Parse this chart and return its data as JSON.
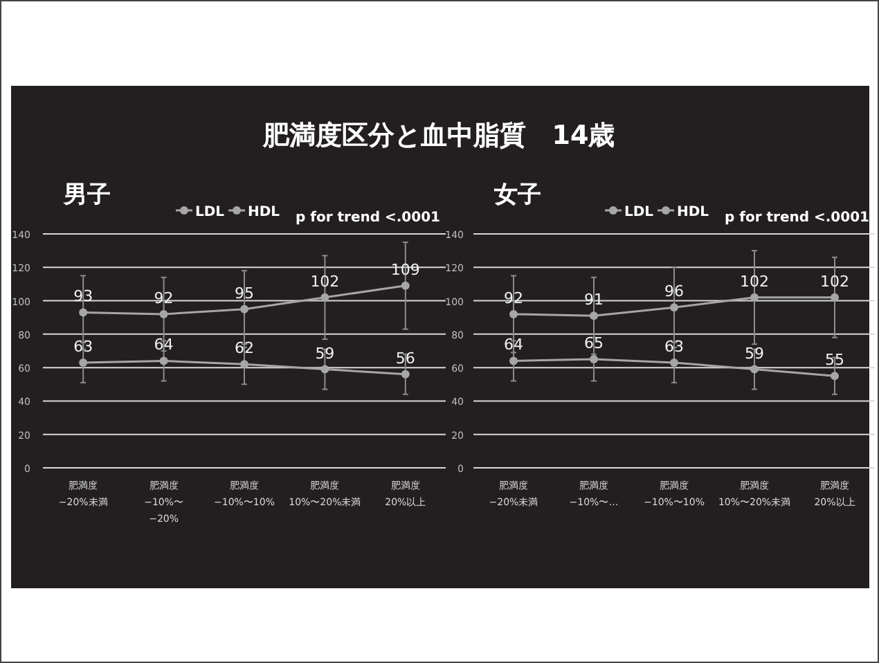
{
  "chart_data": [
    {
      "type": "line",
      "title": "肥満度区分と血中脂質　14歳",
      "subtitle": "男子",
      "categories": [
        "肥満度\n−20%未満",
        "肥満度\n−10%〜\n−20%",
        "肥満度\n−10%〜10%",
        "肥満度\n10%〜20%未満",
        "肥満度\n20%以上"
      ],
      "series": [
        {
          "name": "LDL",
          "color": "#a6a6a6",
          "values": [
            93,
            92,
            95,
            102,
            109
          ],
          "errors": [
            22,
            22,
            23,
            25,
            26
          ]
        },
        {
          "name": "HDL",
          "color": "#a6a6a6",
          "values": [
            63,
            64,
            62,
            59,
            56
          ],
          "errors": [
            12,
            12,
            12,
            12,
            12
          ]
        }
      ],
      "ylim": [
        0,
        140
      ],
      "yticks": [
        0,
        20,
        40,
        60,
        80,
        100,
        120,
        140
      ],
      "grid": "y",
      "legend": "top",
      "marker": "circle",
      "data_labels": true,
      "annotations": [
        "p for trend <.0001"
      ]
    },
    {
      "type": "line",
      "subtitle": "女子",
      "categories": [
        "肥満度\n−20%未満",
        "肥満度\n−10%〜…",
        "肥満度\n−10%〜10%",
        "肥満度\n10%〜20%未満",
        "肥満度\n20%以上"
      ],
      "series": [
        {
          "name": "LDL",
          "color": "#a6a6a6",
          "values": [
            92,
            91,
            96,
            102,
            102
          ],
          "errors": [
            23,
            23,
            24,
            28,
            24
          ]
        },
        {
          "name": "HDL",
          "color": "#a6a6a6",
          "values": [
            64,
            65,
            63,
            59,
            55
          ],
          "errors": [
            12,
            13,
            12,
            12,
            11
          ]
        }
      ],
      "ylim": [
        0,
        140
      ],
      "yticks": [
        0,
        20,
        40,
        60,
        80,
        100,
        120,
        140
      ],
      "grid": "y",
      "legend": "top",
      "marker": "circle",
      "data_labels": true,
      "annotations": [
        "p for trend <.0001"
      ]
    }
  ]
}
